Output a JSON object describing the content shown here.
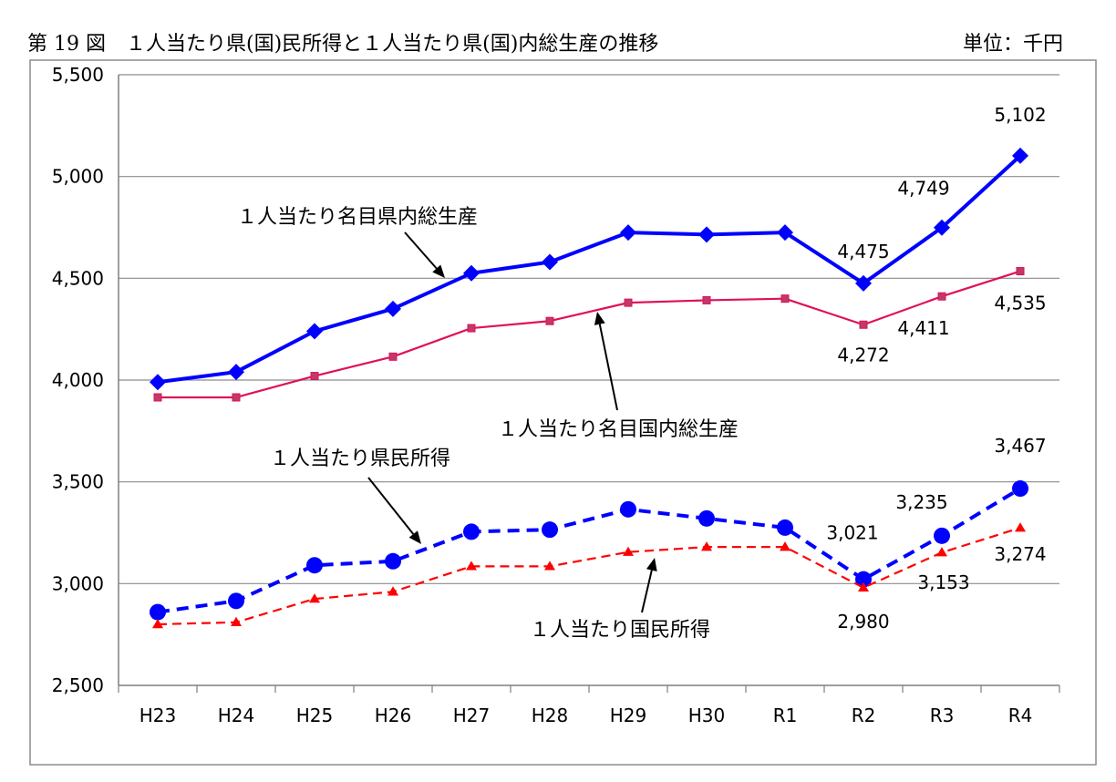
{
  "header": {
    "title": "第 19 図　１人当たり県(国)民所得と１人当たり県(国)内総生産の推移",
    "unit": "単位：千円"
  },
  "chart_data": {
    "type": "line",
    "categories": [
      "H23",
      "H24",
      "H25",
      "H26",
      "H27",
      "H28",
      "H29",
      "H30",
      "R1",
      "R2",
      "R3",
      "R4"
    ],
    "ylim": [
      2500,
      5500
    ],
    "y_ticks": [
      2500,
      3000,
      3500,
      4000,
      4500,
      5000,
      5500
    ],
    "y_tick_labels": [
      "2,500",
      "3,000",
      "3,500",
      "4,000",
      "4,500",
      "5,000",
      "5,500"
    ],
    "grid": "horizontal",
    "series": [
      {
        "name": "1人当たり名目県内総生産",
        "color": "#0000ff",
        "line_style": "solid",
        "marker": "diamond",
        "values": [
          3990,
          4040,
          4240,
          4350,
          4525,
          4580,
          4725,
          4715,
          4725,
          4475,
          4749,
          5102
        ]
      },
      {
        "name": "1人当たり名目国内総生産",
        "color": "#e0105a",
        "line_style": "solid",
        "marker": "square",
        "values": [
          3915,
          3915,
          4020,
          4115,
          4255,
          4290,
          4380,
          4392,
          4400,
          4272,
          4411,
          4535
        ]
      },
      {
        "name": "1人当たり県民所得",
        "color": "#0000ff",
        "line_style": "dashed",
        "marker": "circle",
        "values": [
          2860,
          2915,
          3090,
          3110,
          3255,
          3265,
          3365,
          3320,
          3275,
          3021,
          3235,
          3467
        ]
      },
      {
        "name": "1人当たり国民所得",
        "color": "#ff0000",
        "line_style": "dashed",
        "marker": "triangle",
        "values": [
          2800,
          2810,
          2925,
          2960,
          3085,
          3085,
          3155,
          3180,
          3180,
          2980,
          3153,
          3274
        ]
      }
    ],
    "data_labels": [
      {
        "series": 0,
        "index": 9,
        "text": "4,475"
      },
      {
        "series": 0,
        "index": 10,
        "text": "4,749"
      },
      {
        "series": 0,
        "index": 11,
        "text": "5,102"
      },
      {
        "series": 1,
        "index": 9,
        "text": "4,272"
      },
      {
        "series": 1,
        "index": 10,
        "text": "4,411"
      },
      {
        "series": 1,
        "index": 11,
        "text": "4,535"
      },
      {
        "series": 2,
        "index": 9,
        "text": "3,021"
      },
      {
        "series": 2,
        "index": 10,
        "text": "3,235"
      },
      {
        "series": 2,
        "index": 11,
        "text": "3,467"
      },
      {
        "series": 3,
        "index": 9,
        "text": "2,980"
      },
      {
        "series": 3,
        "index": 10,
        "text": "3,153"
      },
      {
        "series": 3,
        "index": 11,
        "text": "3,274"
      }
    ],
    "annotations": [
      {
        "series": 0,
        "text": "１人当たり名目県内総生産"
      },
      {
        "series": 1,
        "text": "１人当たり名目国内総生産"
      },
      {
        "series": 2,
        "text": "１人当たり県民所得"
      },
      {
        "series": 3,
        "text": "１人当たり国民所得"
      }
    ]
  }
}
